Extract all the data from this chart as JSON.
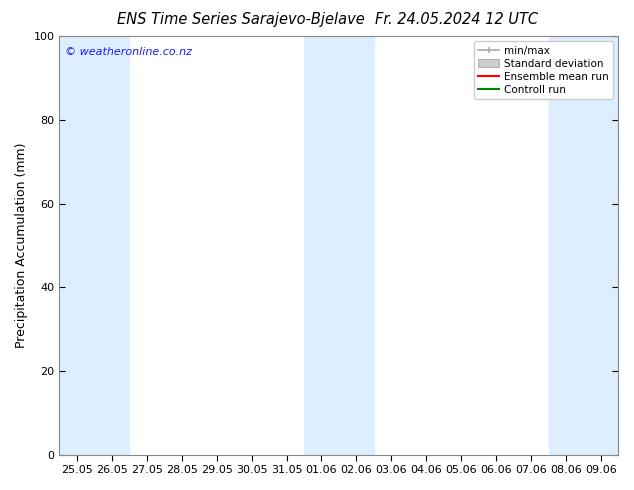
{
  "title_left": "ENS Time Series Sarajevo-Bjelave",
  "title_right": "Fr. 24.05.2024 12 UTC",
  "ylabel": "Precipitation Accumulation (mm)",
  "ylim": [
    0,
    100
  ],
  "yticks": [
    0,
    20,
    40,
    60,
    80,
    100
  ],
  "x_labels": [
    "25.05",
    "26.05",
    "27.05",
    "28.05",
    "29.05",
    "30.05",
    "31.05",
    "01.06",
    "02.06",
    "03.06",
    "04.06",
    "05.06",
    "06.06",
    "07.06",
    "08.06",
    "09.06"
  ],
  "shaded_bands_ranges": [
    [
      0,
      1
    ],
    [
      7,
      8
    ],
    [
      14,
      15
    ]
  ],
  "shade_color": "#ddeeff",
  "background_color": "#ffffff",
  "watermark": "© weatheronline.co.nz",
  "watermark_color": "#1a1aff",
  "legend_entries": [
    "min/max",
    "Standard deviation",
    "Ensemble mean run",
    "Controll run"
  ],
  "minmax_color": "#aaaaaa",
  "std_facecolor": "#cccccc",
  "std_edgecolor": "#aaaaaa",
  "ens_color": "#ff0000",
  "ctrl_color": "#008800",
  "title_fontsize": 10.5,
  "ylabel_fontsize": 9,
  "tick_fontsize": 8,
  "legend_fontsize": 7.5,
  "watermark_fontsize": 8
}
